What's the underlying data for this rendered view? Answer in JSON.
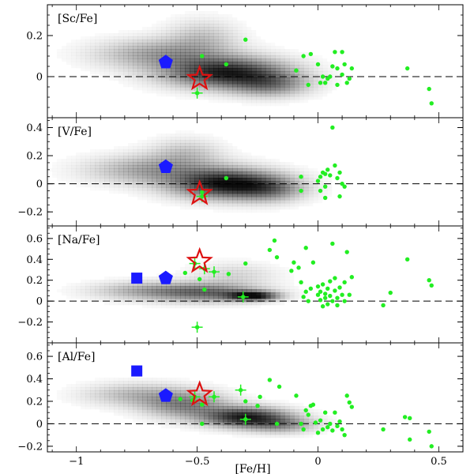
{
  "chart_data": {
    "type": "scatter",
    "xlabel": "[Fe/H]",
    "xlim": [
      -1.12,
      0.6
    ],
    "xticks": [
      -1,
      -0.5,
      0,
      0.5
    ],
    "xtick_labels": [
      "−1",
      "−0.5",
      "0",
      "0.5"
    ],
    "colors": {
      "green": "#22ee22",
      "blue": "#1a1aff",
      "star": "#dd1111",
      "density": "#000000"
    },
    "panels": [
      {
        "label": "[Sc/Fe]",
        "ylim": [
          -0.2,
          0.35
        ],
        "yticks": [
          0.2,
          0,
          -0.2
        ],
        "ytick_labels": [
          "0.2",
          "0",
          ""
        ],
        "reference_line": 0,
        "density": [
          {
            "cx": -0.38,
            "cy": 0.02,
            "sx": 0.17,
            "sy": 0.05,
            "w": 0.85
          },
          {
            "cx": -0.65,
            "cy": 0.11,
            "sx": 0.18,
            "sy": 0.05,
            "w": 0.35
          },
          {
            "cx": -0.48,
            "cy": 0.19,
            "sx": 0.1,
            "sy": 0.06,
            "w": 0.2
          },
          {
            "cx": -0.2,
            "cy": -0.04,
            "sx": 0.11,
            "sy": 0.04,
            "w": 0.4
          }
        ],
        "points": [
          {
            "x": -0.48,
            "y": 0.1
          },
          {
            "x": -0.38,
            "y": 0.06
          },
          {
            "x": -0.3,
            "y": 0.18
          },
          {
            "x": -0.09,
            "y": 0.03
          },
          {
            "x": -0.06,
            "y": 0.1
          },
          {
            "x": -0.04,
            "y": -0.04
          },
          {
            "x": -0.03,
            "y": 0.11
          },
          {
            "x": 0.0,
            "y": 0.06
          },
          {
            "x": 0.01,
            "y": -0.03
          },
          {
            "x": 0.02,
            "y": 0.0
          },
          {
            "x": 0.03,
            "y": -0.03
          },
          {
            "x": 0.04,
            "y": -0.01
          },
          {
            "x": 0.05,
            "y": 0.0
          },
          {
            "x": 0.06,
            "y": 0.05
          },
          {
            "x": 0.07,
            "y": 0.12
          },
          {
            "x": 0.08,
            "y": -0.04
          },
          {
            "x": 0.08,
            "y": 0.04
          },
          {
            "x": 0.1,
            "y": 0.01
          },
          {
            "x": 0.1,
            "y": 0.12
          },
          {
            "x": 0.11,
            "y": 0.06
          },
          {
            "x": 0.12,
            "y": -0.03
          },
          {
            "x": 0.13,
            "y": -0.01
          },
          {
            "x": 0.14,
            "y": 0.04
          },
          {
            "x": 0.37,
            "y": 0.04
          },
          {
            "x": 0.46,
            "y": -0.06
          },
          {
            "x": 0.47,
            "y": -0.13
          }
        ],
        "crosses": [
          {
            "x": -0.5,
            "y": -0.08
          }
        ],
        "pentagons": [
          {
            "x": -0.63,
            "y": 0.07
          }
        ],
        "squares": [],
        "stars": [
          {
            "x": -0.49,
            "y": -0.01
          }
        ]
      },
      {
        "label": "[V/Fe]",
        "ylim": [
          -0.3,
          0.47
        ],
        "yticks": [
          0.4,
          0.2,
          0,
          -0.2
        ],
        "ytick_labels": [
          "0.4",
          "0.2",
          "0",
          "−0.2"
        ],
        "reference_line": 0,
        "density": [
          {
            "cx": -0.38,
            "cy": 0.0,
            "sx": 0.15,
            "sy": 0.07,
            "w": 0.9
          },
          {
            "cx": -0.68,
            "cy": 0.1,
            "sx": 0.18,
            "sy": 0.07,
            "w": 0.35
          },
          {
            "cx": -0.2,
            "cy": -0.04,
            "sx": 0.1,
            "sy": 0.06,
            "w": 0.35
          },
          {
            "cx": -0.55,
            "cy": 0.22,
            "sx": 0.1,
            "sy": 0.07,
            "w": 0.2
          }
        ],
        "points": [
          {
            "x": -0.48,
            "y": -0.06
          },
          {
            "x": -0.38,
            "y": 0.04
          },
          {
            "x": -0.07,
            "y": -0.05
          },
          {
            "x": -0.07,
            "y": 0.05
          },
          {
            "x": 0.0,
            "y": 0.02
          },
          {
            "x": 0.01,
            "y": 0.05
          },
          {
            "x": 0.02,
            "y": 0.08
          },
          {
            "x": 0.03,
            "y": 0.07
          },
          {
            "x": 0.03,
            "y": -0.02
          },
          {
            "x": 0.04,
            "y": 0.1
          },
          {
            "x": 0.05,
            "y": 0.06
          },
          {
            "x": 0.06,
            "y": 0.4
          },
          {
            "x": 0.07,
            "y": 0.13
          },
          {
            "x": 0.08,
            "y": 0.04
          },
          {
            "x": 0.09,
            "y": 0.08
          },
          {
            "x": 0.1,
            "y": 0.0
          },
          {
            "x": 0.11,
            "y": -0.02
          },
          {
            "x": 0.09,
            "y": -0.09
          },
          {
            "x": 0.03,
            "y": -0.1
          },
          {
            "x": 0.01,
            "y": -0.05
          }
        ],
        "crosses": [
          {
            "x": -0.48,
            "y": -0.09
          }
        ],
        "pentagons": [
          {
            "x": -0.63,
            "y": 0.12
          }
        ],
        "squares": [],
        "stars": [
          {
            "x": -0.49,
            "y": -0.07
          }
        ]
      },
      {
        "label": "[Na/Fe]",
        "ylim": [
          -0.4,
          0.72
        ],
        "yticks": [
          0.6,
          0.4,
          0.2,
          0,
          -0.2
        ],
        "ytick_labels": [
          "0.6",
          "0.4",
          "0.2",
          "0",
          "−0.2"
        ],
        "reference_line": 0,
        "density": [
          {
            "cx": -0.27,
            "cy": 0.05,
            "sx": 0.07,
            "sy": 0.03,
            "w": 0.9
          },
          {
            "cx": -0.45,
            "cy": 0.08,
            "sx": 0.15,
            "sy": 0.06,
            "w": 0.5
          },
          {
            "cx": -0.7,
            "cy": 0.1,
            "sx": 0.16,
            "sy": 0.06,
            "w": 0.3
          },
          {
            "cx": -0.35,
            "cy": 0.25,
            "sx": 0.12,
            "sy": 0.08,
            "w": 0.15
          }
        ],
        "points": [
          {
            "x": -0.55,
            "y": 0.27
          },
          {
            "x": -0.49,
            "y": 0.21
          },
          {
            "x": -0.47,
            "y": 0.11
          },
          {
            "x": -0.37,
            "y": 0.26
          },
          {
            "x": -0.3,
            "y": 0.36
          },
          {
            "x": -0.2,
            "y": 0.49
          },
          {
            "x": -0.18,
            "y": 0.58
          },
          {
            "x": -0.17,
            "y": 0.42
          },
          {
            "x": -0.11,
            "y": 0.29
          },
          {
            "x": -0.1,
            "y": 0.37
          },
          {
            "x": -0.08,
            "y": 0.32
          },
          {
            "x": -0.07,
            "y": 0.18
          },
          {
            "x": -0.06,
            "y": 0.04
          },
          {
            "x": -0.05,
            "y": 0.09
          },
          {
            "x": -0.05,
            "y": 0.51
          },
          {
            "x": -0.04,
            "y": 0.0
          },
          {
            "x": -0.03,
            "y": 0.12
          },
          {
            "x": -0.02,
            "y": 0.37
          },
          {
            "x": 0.0,
            "y": 0.06
          },
          {
            "x": 0.0,
            "y": 0.14
          },
          {
            "x": 0.01,
            "y": 0.01
          },
          {
            "x": 0.01,
            "y": 0.09
          },
          {
            "x": 0.02,
            "y": 0.16
          },
          {
            "x": 0.02,
            "y": -0.05
          },
          {
            "x": 0.03,
            "y": 0.07
          },
          {
            "x": 0.03,
            "y": 0.03
          },
          {
            "x": 0.04,
            "y": 0.12
          },
          {
            "x": 0.04,
            "y": -0.03
          },
          {
            "x": 0.05,
            "y": 0.19
          },
          {
            "x": 0.05,
            "y": 0.05
          },
          {
            "x": 0.06,
            "y": 0.0
          },
          {
            "x": 0.06,
            "y": 0.55
          },
          {
            "x": 0.07,
            "y": 0.22
          },
          {
            "x": 0.07,
            "y": 0.1
          },
          {
            "x": 0.08,
            "y": 0.03
          },
          {
            "x": 0.08,
            "y": -0.04
          },
          {
            "x": 0.09,
            "y": 0.13
          },
          {
            "x": 0.1,
            "y": 0.06
          },
          {
            "x": 0.11,
            "y": 0.0
          },
          {
            "x": 0.11,
            "y": 0.18
          },
          {
            "x": 0.12,
            "y": 0.47
          },
          {
            "x": 0.13,
            "y": 0.06
          },
          {
            "x": 0.14,
            "y": 0.23
          },
          {
            "x": 0.27,
            "y": -0.04
          },
          {
            "x": 0.3,
            "y": 0.08
          },
          {
            "x": 0.37,
            "y": 0.4
          },
          {
            "x": 0.46,
            "y": 0.2
          },
          {
            "x": 0.47,
            "y": 0.15
          }
        ],
        "crosses": [
          {
            "x": -0.51,
            "y": 0.36
          },
          {
            "x": -0.47,
            "y": 0.31
          },
          {
            "x": -0.43,
            "y": 0.28
          },
          {
            "x": -0.31,
            "y": 0.04
          },
          {
            "x": -0.5,
            "y": -0.25
          }
        ],
        "pentagons": [
          {
            "x": -0.63,
            "y": 0.22
          }
        ],
        "squares": [
          {
            "x": -0.75,
            "y": 0.22
          }
        ],
        "stars": [
          {
            "x": -0.49,
            "y": 0.38
          }
        ]
      },
      {
        "label": "[Al/Fe]",
        "ylim": [
          -0.25,
          0.72
        ],
        "yticks": [
          0.6,
          0.4,
          0.2,
          0,
          -0.2
        ],
        "ytick_labels": [
          "0.6",
          "0.4",
          "0.2",
          "0",
          "−0.2"
        ],
        "reference_line": 0,
        "density": [
          {
            "cx": -0.3,
            "cy": 0.06,
            "sx": 0.12,
            "sy": 0.06,
            "w": 0.85
          },
          {
            "cx": -0.55,
            "cy": 0.17,
            "sx": 0.12,
            "sy": 0.08,
            "w": 0.45
          },
          {
            "cx": -0.75,
            "cy": 0.26,
            "sx": 0.15,
            "sy": 0.07,
            "w": 0.25
          },
          {
            "cx": -0.15,
            "cy": -0.01,
            "sx": 0.1,
            "sy": 0.05,
            "w": 0.35
          }
        ],
        "points": [
          {
            "x": -0.57,
            "y": 0.22
          },
          {
            "x": -0.52,
            "y": 0.21
          },
          {
            "x": -0.48,
            "y": 0.17
          },
          {
            "x": -0.48,
            "y": 0.0
          },
          {
            "x": -0.3,
            "y": 0.2
          },
          {
            "x": -0.25,
            "y": 0.16
          },
          {
            "x": -0.24,
            "y": 0.24
          },
          {
            "x": -0.2,
            "y": 0.39
          },
          {
            "x": -0.17,
            "y": 0.0
          },
          {
            "x": -0.16,
            "y": 0.33
          },
          {
            "x": -0.09,
            "y": 0.25
          },
          {
            "x": -0.07,
            "y": 0.0
          },
          {
            "x": -0.06,
            "y": -0.05
          },
          {
            "x": -0.05,
            "y": 0.12
          },
          {
            "x": -0.04,
            "y": 0.08
          },
          {
            "x": -0.03,
            "y": 0.16
          },
          {
            "x": -0.02,
            "y": 0.17
          },
          {
            "x": -0.01,
            "y": 0.01
          },
          {
            "x": 0.0,
            "y": -0.08
          },
          {
            "x": 0.01,
            "y": 0.03
          },
          {
            "x": 0.02,
            "y": -0.05
          },
          {
            "x": 0.03,
            "y": 0.1
          },
          {
            "x": 0.04,
            "y": -0.03
          },
          {
            "x": 0.05,
            "y": 0.0
          },
          {
            "x": 0.06,
            "y": -0.06
          },
          {
            "x": 0.07,
            "y": 0.1
          },
          {
            "x": 0.08,
            "y": -0.02
          },
          {
            "x": 0.09,
            "y": 0.02
          },
          {
            "x": 0.1,
            "y": -0.05
          },
          {
            "x": 0.11,
            "y": -0.1
          },
          {
            "x": 0.12,
            "y": 0.25
          },
          {
            "x": 0.13,
            "y": 0.19
          },
          {
            "x": 0.14,
            "y": 0.15
          },
          {
            "x": 0.27,
            "y": -0.05
          },
          {
            "x": 0.36,
            "y": 0.06
          },
          {
            "x": 0.38,
            "y": 0.05
          },
          {
            "x": 0.38,
            "y": -0.14
          },
          {
            "x": 0.46,
            "y": -0.07
          },
          {
            "x": 0.47,
            "y": -0.2
          }
        ],
        "crosses": [
          {
            "x": -0.51,
            "y": 0.24
          },
          {
            "x": -0.43,
            "y": 0.24
          },
          {
            "x": -0.32,
            "y": 0.3
          },
          {
            "x": -0.3,
            "y": 0.04
          }
        ],
        "pentagons": [
          {
            "x": -0.63,
            "y": 0.25
          }
        ],
        "squares": [
          {
            "x": -0.75,
            "y": 0.47
          }
        ],
        "stars": [
          {
            "x": -0.49,
            "y": 0.26
          }
        ]
      }
    ]
  }
}
